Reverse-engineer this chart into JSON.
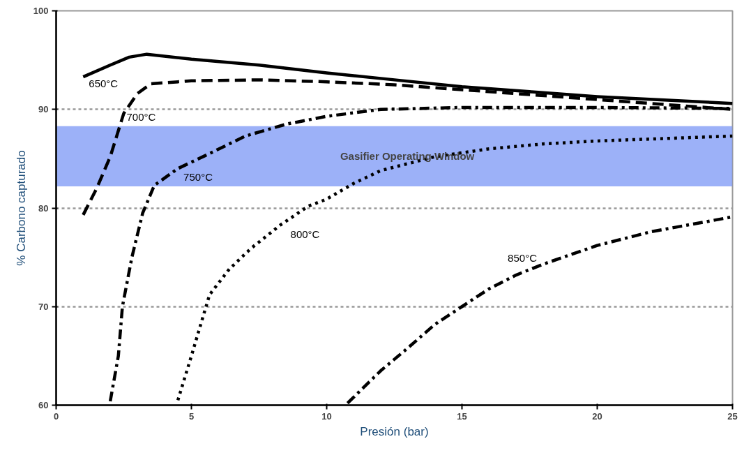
{
  "chart_data": {
    "type": "line",
    "xlabel": "Presión (bar)",
    "ylabel": "% Carbono capturado",
    "xlim": [
      0,
      25
    ],
    "ylim": [
      60,
      100
    ],
    "xticks": [
      0,
      5,
      10,
      15,
      20,
      25
    ],
    "yticks": [
      60,
      70,
      80,
      90,
      100
    ],
    "grid": "y",
    "marker": "none",
    "bands": [
      {
        "axis": "y",
        "from": 82.2,
        "to": 88.3,
        "label": "Gasifier Operating Window",
        "color": "#7b97f5"
      }
    ],
    "series": [
      {
        "name": "650°C",
        "color": "#000000",
        "line_style": "solid",
        "x": [
          1.0,
          2.0,
          2.7,
          3.35,
          5,
          7.5,
          10,
          12.5,
          15,
          17.5,
          20,
          25
        ],
        "values": [
          93.3,
          94.5,
          95.3,
          95.6,
          95.1,
          94.5,
          93.7,
          93.0,
          92.3,
          91.8,
          91.3,
          90.6
        ]
      },
      {
        "name": "700°C",
        "color": "#000000",
        "line_style": "dashed",
        "x": [
          1.0,
          1.5,
          2.0,
          2.5,
          3.0,
          3.5,
          5,
          7.5,
          10,
          12.5,
          15,
          20,
          25
        ],
        "values": [
          79.3,
          82.0,
          85.2,
          89.6,
          91.6,
          92.6,
          92.9,
          93.0,
          92.8,
          92.5,
          92.0,
          91.0,
          90.0
        ]
      },
      {
        "name": "750°C",
        "color": "#000000",
        "line_style": "dashdot",
        "x": [
          2.0,
          2.3,
          2.45,
          2.8,
          3.2,
          3.63,
          4.5,
          5.5,
          7,
          8.5,
          10,
          12,
          15,
          20,
          25
        ],
        "values": [
          60.4,
          65.0,
          70.0,
          75.0,
          79.5,
          82.3,
          84.0,
          85.3,
          87.3,
          88.5,
          89.3,
          90.0,
          90.2,
          90.2,
          90.1
        ]
      },
      {
        "name": "800°C",
        "color": "#000000",
        "line_style": "dotted",
        "x": [
          4.5,
          5.0,
          5.67,
          6.4,
          7.2,
          8.3,
          9.33,
          10,
          11,
          12,
          14,
          16,
          18,
          20,
          25
        ],
        "values": [
          60.5,
          65.0,
          71.2,
          73.8,
          75.9,
          78.3,
          80.2,
          80.9,
          82.5,
          83.8,
          85.2,
          86.0,
          86.5,
          86.8,
          87.3
        ]
      },
      {
        "name": "850°C",
        "color": "#000000",
        "line_style": "dashdot",
        "x": [
          10.77,
          12,
          13,
          14,
          15,
          16,
          17,
          18,
          20,
          22,
          24,
          25
        ],
        "values": [
          60.2,
          63.5,
          65.8,
          68.2,
          70.0,
          71.8,
          73.2,
          74.3,
          76.2,
          77.6,
          78.6,
          79.1
        ]
      }
    ]
  }
}
